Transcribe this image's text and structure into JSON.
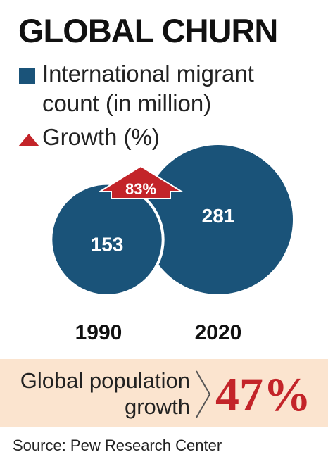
{
  "title": "GLOBAL CHURN",
  "legend": {
    "count_label_line1": "International migrant",
    "count_label_line2": "count (in million)",
    "growth_label": "Growth (%)"
  },
  "colors": {
    "circle": "#1a5379",
    "arrow": "#c32429",
    "band": "#fbe4cf"
  },
  "chart_data": {
    "type": "bubble",
    "title": "GLOBAL CHURN",
    "categories": [
      "1990",
      "2020"
    ],
    "values": [
      153,
      281
    ],
    "unit": "million",
    "growth_label": "83%",
    "growth_percent": 83
  },
  "summary": {
    "label_line1": "Global population",
    "label_line2": "growth",
    "value": "47%"
  },
  "source": "Source: Pew Research Center"
}
